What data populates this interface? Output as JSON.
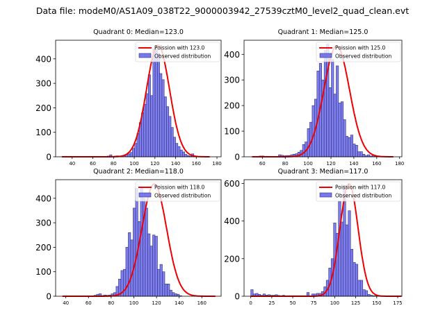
{
  "suptitle": "Data file: modeM0/AS1A09_038T22_9000003942_27539cztM0_level2_quad_clean.evt",
  "colors": {
    "bar_fill": "#7777ee",
    "bar_edge": "#33337a",
    "poisson_line": "#ee0000"
  },
  "chart_data": [
    {
      "type": "bar",
      "title": "Quadrant 0: Median=123.0",
      "median": 123.0,
      "legend": {
        "line_label": "Poission with 123.0",
        "bar_label": "Observed distribution",
        "placement": "upper-right"
      },
      "xlim": [
        24,
        184
      ],
      "ylim": [
        0,
        476
      ],
      "xticks": [
        40,
        60,
        80,
        100,
        120,
        140,
        160,
        180
      ],
      "yticks": [
        0,
        100,
        200,
        300,
        400
      ],
      "bin_start": 30,
      "bin_width": 2.2,
      "values": [
        0,
        0,
        0,
        0,
        0,
        0,
        0,
        0,
        0,
        0,
        0,
        0,
        0,
        0,
        0,
        0,
        0,
        0,
        0,
        2,
        3,
        8,
        2,
        3,
        4,
        2,
        2,
        4,
        10,
        12,
        18,
        35,
        55,
        95,
        140,
        180,
        215,
        258,
        335,
        250,
        440,
        440,
        420,
        340,
        315,
        245,
        205,
        165,
        120,
        80,
        55,
        42,
        28,
        20,
        10,
        5,
        3,
        12,
        2,
        1,
        0,
        0,
        0,
        0,
        0
      ],
      "poisson_mu": 123.0,
      "poisson_peak": 456
    },
    {
      "type": "bar",
      "title": "Quadrant 1: Median=125.0",
      "median": 125.0,
      "legend": {
        "line_label": "Poission with 125.0",
        "bar_label": "Observed distribution",
        "placement": "upper-right"
      },
      "xlim": [
        44,
        182
      ],
      "ylim": [
        0,
        455
      ],
      "xticks": [
        60,
        80,
        100,
        120,
        140,
        160,
        180
      ],
      "yticks": [
        0,
        100,
        200,
        300,
        400
      ],
      "bin_start": 51,
      "bin_width": 2.1,
      "values": [
        0,
        0,
        2,
        3,
        3,
        2,
        2,
        0,
        0,
        0,
        0,
        8,
        6,
        4,
        5,
        5,
        8,
        10,
        12,
        18,
        25,
        48,
        58,
        110,
        135,
        200,
        225,
        335,
        365,
        300,
        415,
        440,
        270,
        380,
        245,
        355,
        210,
        215,
        145,
        80,
        75,
        85,
        50,
        45,
        20,
        20,
        10,
        5,
        8,
        3,
        5,
        3,
        2,
        0,
        0,
        0,
        0,
        0,
        0
      ],
      "poisson_mu": 125.0,
      "poisson_peak": 433
    },
    {
      "type": "bar",
      "title": "Quadrant 2: Median=118.0",
      "median": 118.0,
      "legend": {
        "line_label": "Poission with 118.0",
        "bar_label": "Observed distribution",
        "placement": "upper-right"
      },
      "xlim": [
        31,
        177
      ],
      "ylim": [
        0,
        476
      ],
      "xticks": [
        40,
        60,
        80,
        100,
        120,
        140,
        160
      ],
      "yticks": [
        0,
        100,
        200,
        300,
        400
      ],
      "bin_start": 37,
      "bin_width": 2.15,
      "values": [
        0,
        0,
        0,
        0,
        0,
        0,
        0,
        0,
        0,
        0,
        0,
        0,
        0,
        4,
        8,
        10,
        3,
        5,
        4,
        5,
        10,
        15,
        40,
        70,
        105,
        110,
        200,
        260,
        230,
        360,
        440,
        305,
        440,
        400,
        360,
        255,
        205,
        250,
        245,
        110,
        130,
        100,
        50,
        50,
        25,
        15,
        10,
        8,
        2,
        0,
        0,
        0,
        0,
        0,
        0,
        0,
        0,
        0,
        0,
        0,
        0,
        0,
        0
      ],
      "poisson_mu": 118.0,
      "poisson_peak": 458
    },
    {
      "type": "bar",
      "title": "Quadrant 3: Median=117.0",
      "median": 117.0,
      "legend": {
        "line_label": "Poission with 117.0",
        "bar_label": "Observed distribution",
        "placement": "upper-right"
      },
      "xlim": [
        -8,
        180
      ],
      "ylim": [
        0,
        620
      ],
      "xticks": [
        0,
        25,
        50,
        75,
        100,
        125,
        150,
        175
      ],
      "yticks": [
        0,
        200,
        400,
        600
      ],
      "bin_start": 0,
      "bin_width": 2.9,
      "values": [
        35,
        12,
        15,
        10,
        5,
        12,
        6,
        8,
        5,
        5,
        8,
        4,
        3,
        5,
        2,
        3,
        3,
        3,
        3,
        3,
        3,
        3,
        3,
        20,
        3,
        12,
        12,
        15,
        15,
        25,
        50,
        85,
        150,
        200,
        390,
        335,
        505,
        395,
        590,
        380,
        455,
        250,
        180,
        170,
        85,
        85,
        35,
        30,
        10,
        5,
        3,
        2,
        0,
        0,
        0,
        0,
        0,
        0,
        0,
        0,
        0,
        0
      ],
      "poisson_mu": 117.0,
      "poisson_peak": 598
    }
  ]
}
